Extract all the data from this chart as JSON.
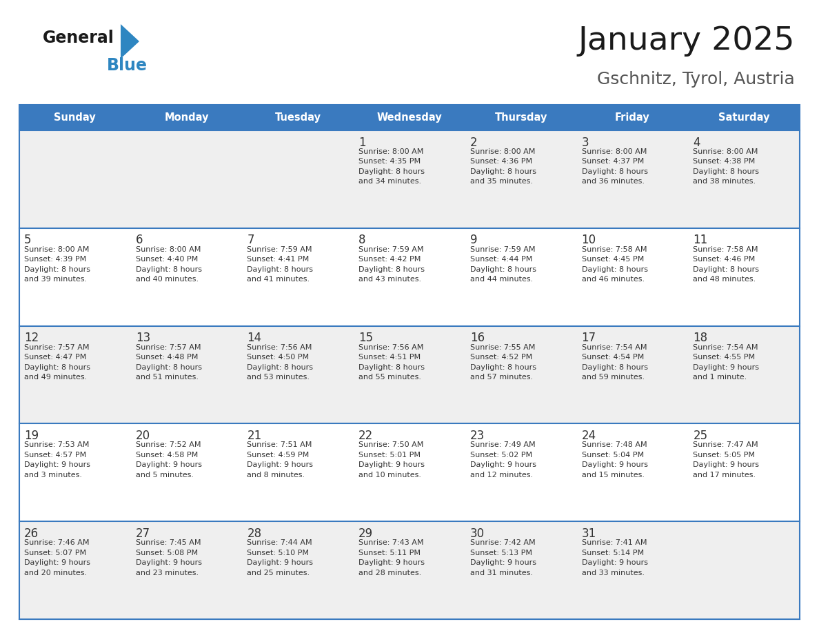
{
  "title": "January 2025",
  "subtitle": "Gschnitz, Tyrol, Austria",
  "days_of_week": [
    "Sunday",
    "Monday",
    "Tuesday",
    "Wednesday",
    "Thursday",
    "Friday",
    "Saturday"
  ],
  "header_bg": "#3a7abf",
  "header_text": "#ffffff",
  "row_bg_light": "#efefef",
  "row_bg_white": "#ffffff",
  "row_line_color": "#3a7abf",
  "text_color": "#333333",
  "title_color": "#1a1a1a",
  "subtitle_color": "#555555",
  "logo_black": "#1a1a1a",
  "logo_blue": "#2e86c1",
  "calendar_data": [
    [
      null,
      null,
      null,
      {
        "day": 1,
        "sunrise": "8:00 AM",
        "sunset": "4:35 PM",
        "daylight_h": "8 hours",
        "daylight_m": "34 minutes."
      },
      {
        "day": 2,
        "sunrise": "8:00 AM",
        "sunset": "4:36 PM",
        "daylight_h": "8 hours",
        "daylight_m": "35 minutes."
      },
      {
        "day": 3,
        "sunrise": "8:00 AM",
        "sunset": "4:37 PM",
        "daylight_h": "8 hours",
        "daylight_m": "36 minutes."
      },
      {
        "day": 4,
        "sunrise": "8:00 AM",
        "sunset": "4:38 PM",
        "daylight_h": "8 hours",
        "daylight_m": "38 minutes."
      }
    ],
    [
      {
        "day": 5,
        "sunrise": "8:00 AM",
        "sunset": "4:39 PM",
        "daylight_h": "8 hours",
        "daylight_m": "39 minutes."
      },
      {
        "day": 6,
        "sunrise": "8:00 AM",
        "sunset": "4:40 PM",
        "daylight_h": "8 hours",
        "daylight_m": "40 minutes."
      },
      {
        "day": 7,
        "sunrise": "7:59 AM",
        "sunset": "4:41 PM",
        "daylight_h": "8 hours",
        "daylight_m": "41 minutes."
      },
      {
        "day": 8,
        "sunrise": "7:59 AM",
        "sunset": "4:42 PM",
        "daylight_h": "8 hours",
        "daylight_m": "43 minutes."
      },
      {
        "day": 9,
        "sunrise": "7:59 AM",
        "sunset": "4:44 PM",
        "daylight_h": "8 hours",
        "daylight_m": "44 minutes."
      },
      {
        "day": 10,
        "sunrise": "7:58 AM",
        "sunset": "4:45 PM",
        "daylight_h": "8 hours",
        "daylight_m": "46 minutes."
      },
      {
        "day": 11,
        "sunrise": "7:58 AM",
        "sunset": "4:46 PM",
        "daylight_h": "8 hours",
        "daylight_m": "48 minutes."
      }
    ],
    [
      {
        "day": 12,
        "sunrise": "7:57 AM",
        "sunset": "4:47 PM",
        "daylight_h": "8 hours",
        "daylight_m": "49 minutes."
      },
      {
        "day": 13,
        "sunrise": "7:57 AM",
        "sunset": "4:48 PM",
        "daylight_h": "8 hours",
        "daylight_m": "51 minutes."
      },
      {
        "day": 14,
        "sunrise": "7:56 AM",
        "sunset": "4:50 PM",
        "daylight_h": "8 hours",
        "daylight_m": "53 minutes."
      },
      {
        "day": 15,
        "sunrise": "7:56 AM",
        "sunset": "4:51 PM",
        "daylight_h": "8 hours",
        "daylight_m": "55 minutes."
      },
      {
        "day": 16,
        "sunrise": "7:55 AM",
        "sunset": "4:52 PM",
        "daylight_h": "8 hours",
        "daylight_m": "57 minutes."
      },
      {
        "day": 17,
        "sunrise": "7:54 AM",
        "sunset": "4:54 PM",
        "daylight_h": "8 hours",
        "daylight_m": "59 minutes."
      },
      {
        "day": 18,
        "sunrise": "7:54 AM",
        "sunset": "4:55 PM",
        "daylight_h": "9 hours",
        "daylight_m": "1 minute."
      }
    ],
    [
      {
        "day": 19,
        "sunrise": "7:53 AM",
        "sunset": "4:57 PM",
        "daylight_h": "9 hours",
        "daylight_m": "3 minutes."
      },
      {
        "day": 20,
        "sunrise": "7:52 AM",
        "sunset": "4:58 PM",
        "daylight_h": "9 hours",
        "daylight_m": "5 minutes."
      },
      {
        "day": 21,
        "sunrise": "7:51 AM",
        "sunset": "4:59 PM",
        "daylight_h": "9 hours",
        "daylight_m": "8 minutes."
      },
      {
        "day": 22,
        "sunrise": "7:50 AM",
        "sunset": "5:01 PM",
        "daylight_h": "9 hours",
        "daylight_m": "10 minutes."
      },
      {
        "day": 23,
        "sunrise": "7:49 AM",
        "sunset": "5:02 PM",
        "daylight_h": "9 hours",
        "daylight_m": "12 minutes."
      },
      {
        "day": 24,
        "sunrise": "7:48 AM",
        "sunset": "5:04 PM",
        "daylight_h": "9 hours",
        "daylight_m": "15 minutes."
      },
      {
        "day": 25,
        "sunrise": "7:47 AM",
        "sunset": "5:05 PM",
        "daylight_h": "9 hours",
        "daylight_m": "17 minutes."
      }
    ],
    [
      {
        "day": 26,
        "sunrise": "7:46 AM",
        "sunset": "5:07 PM",
        "daylight_h": "9 hours",
        "daylight_m": "20 minutes."
      },
      {
        "day": 27,
        "sunrise": "7:45 AM",
        "sunset": "5:08 PM",
        "daylight_h": "9 hours",
        "daylight_m": "23 minutes."
      },
      {
        "day": 28,
        "sunrise": "7:44 AM",
        "sunset": "5:10 PM",
        "daylight_h": "9 hours",
        "daylight_m": "25 minutes."
      },
      {
        "day": 29,
        "sunrise": "7:43 AM",
        "sunset": "5:11 PM",
        "daylight_h": "9 hours",
        "daylight_m": "28 minutes."
      },
      {
        "day": 30,
        "sunrise": "7:42 AM",
        "sunset": "5:13 PM",
        "daylight_h": "9 hours",
        "daylight_m": "31 minutes."
      },
      {
        "day": 31,
        "sunrise": "7:41 AM",
        "sunset": "5:14 PM",
        "daylight_h": "9 hours",
        "daylight_m": "33 minutes."
      },
      null
    ]
  ]
}
